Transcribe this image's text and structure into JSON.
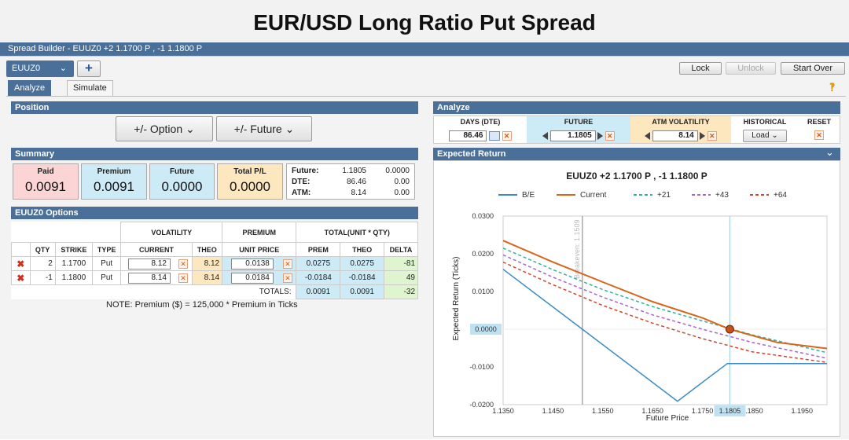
{
  "page_title": "EUR/USD Long Ratio Put Spread",
  "window_title": "Spread Builder - EUUZ0 +2 1.1700 P , -1 1.1800 P",
  "symbol_tab": "EUUZ0",
  "add_tab": "+",
  "toolbar": {
    "lock": "Lock",
    "unlock": "Unlock",
    "start_over": "Start Over"
  },
  "tabs": {
    "analyze": "Analyze",
    "simulate": "Simulate"
  },
  "position": {
    "header": "Position",
    "option_btn": "+/- Option",
    "future_btn": "+/- Future"
  },
  "summary": {
    "header": "Summary",
    "paid_label": "Paid",
    "paid": "0.0091",
    "premium_label": "Premium",
    "premium": "0.0091",
    "future_label": "Future",
    "future": "0.0000",
    "total_label": "Total P/L",
    "total": "0.0000",
    "detail": [
      {
        "label": "Future:",
        "v1": "1.1805",
        "v2": "0.0000"
      },
      {
        "label": "DTE:",
        "v1": "86.46",
        "v2": "0.00"
      },
      {
        "label": "ATM:",
        "v1": "8.14",
        "v2": "0.00"
      }
    ]
  },
  "options": {
    "header": "EUUZ0 Options",
    "group_volatility": "VOLATILITY",
    "group_premium": "PREMIUM",
    "group_total": "TOTAL(UNIT * QTY)",
    "cols": {
      "qty": "QTY",
      "strike": "STRIKE",
      "type": "TYPE",
      "current": "CURRENT",
      "theo": "THEO",
      "unit_price": "UNIT PRICE",
      "prem": "PREM",
      "theo2": "THEO",
      "delta": "DELTA"
    },
    "rows": [
      {
        "qty": "2",
        "strike": "1.1700",
        "type": "Put",
        "current": "8.12",
        "theo": "8.12",
        "unit_price": "0.0138",
        "prem": "0.0275",
        "theo2": "0.0275",
        "delta": "-81"
      },
      {
        "qty": "-1",
        "strike": "1.1800",
        "type": "Put",
        "current": "8.14",
        "theo": "8.14",
        "unit_price": "0.0184",
        "prem": "-0.0184",
        "theo2": "-0.0184",
        "delta": "49"
      }
    ],
    "totals_label": "TOTALS:",
    "totals": {
      "prem": "0.0091",
      "theo": "0.0091",
      "delta": "-32"
    },
    "note": "NOTE: Premium ($) = 125,000 * Premium in Ticks"
  },
  "analyze": {
    "header": "Analyze",
    "days_label": "DAYS (DTE)",
    "days_value": "86.46",
    "future_label": "FUTURE",
    "future_value": "1.1805",
    "atm_label": "ATM VOLATILITY",
    "atm_value": "8.14",
    "hist_label": "HISTORICAL",
    "hist_value": "Load",
    "reset_label": "RESET"
  },
  "expected_return": {
    "header": "Expected Return",
    "watermark_label": "Breakeven: 1.1509",
    "x_marker_label": "1.1805",
    "y_marker_label": "0.0000"
  },
  "chart_data": {
    "type": "line",
    "title": "EUUZ0 +2 1.1700 P , -1 1.1800 P",
    "xlabel": "Future Price",
    "ylabel": "Expected Return (Ticks)",
    "xlim": [
      1.135,
      1.2
    ],
    "ylim": [
      -0.02,
      0.03
    ],
    "xticks": [
      "1.1350",
      "1.1450",
      "1.1550",
      "1.1650",
      "1.1750",
      "1.1850",
      "1.1950"
    ],
    "yticks": [
      "0.0300",
      "0.0200",
      "0.0100",
      "0.0000",
      "-0.0100",
      "-0.0200"
    ],
    "breakeven": 1.1509,
    "current_future": 1.1805,
    "legend_position": "top",
    "series": [
      {
        "name": "B/E",
        "color": "#3a8bc4",
        "dash": "",
        "x": [
          1.135,
          1.1509,
          1.17,
          1.18,
          1.2
        ],
        "y": [
          0.0159,
          0.0,
          -0.0191,
          -0.0091,
          -0.0091
        ]
      },
      {
        "name": "Current",
        "color": "#d9651b",
        "dash": "",
        "x": [
          1.135,
          1.145,
          1.155,
          1.165,
          1.175,
          1.1805,
          1.19,
          1.2
        ],
        "y": [
          0.0235,
          0.0178,
          0.0125,
          0.0073,
          0.003,
          0.0,
          -0.0035,
          -0.0051
        ]
      },
      {
        "name": "+21",
        "color": "#2fb39a",
        "dash": "4,3",
        "x": [
          1.135,
          1.145,
          1.155,
          1.165,
          1.175,
          1.185,
          1.2
        ],
        "y": [
          0.0215,
          0.0158,
          0.0105,
          0.006,
          0.0022,
          -0.0015,
          -0.0062
        ]
      },
      {
        "name": "+43",
        "color": "#a466c9",
        "dash": "4,3",
        "x": [
          1.135,
          1.145,
          1.155,
          1.165,
          1.175,
          1.185,
          1.2
        ],
        "y": [
          0.0197,
          0.0138,
          0.0085,
          0.0038,
          0.0,
          -0.0035,
          -0.0077
        ]
      },
      {
        "name": "+64",
        "color": "#d2442c",
        "dash": "4,3",
        "x": [
          1.135,
          1.145,
          1.155,
          1.165,
          1.175,
          1.185,
          1.2
        ],
        "y": [
          0.0178,
          0.0118,
          0.0063,
          0.0016,
          -0.0025,
          -0.006,
          -0.0088
        ]
      }
    ]
  }
}
